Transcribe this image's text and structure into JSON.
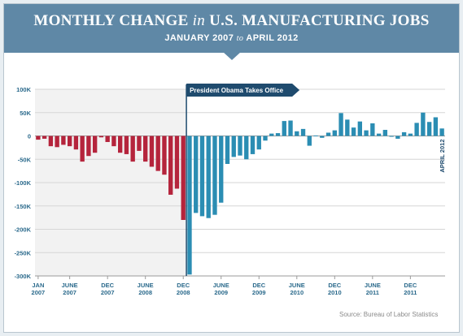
{
  "header": {
    "title_part1": "MONTHLY CHANGE",
    "title_in": "in",
    "title_part2": "U.S. MANUFACTURING JOBS",
    "subtitle_start": "JANUARY 2007",
    "subtitle_to": "to",
    "subtitle_end": "APRIL 2012"
  },
  "annotation": "President Obama Takes Office",
  "end_label": "APRIL 2012",
  "source": "Source: Bureau of Labor Statistics",
  "colors": {
    "before": "#b5243c",
    "after": "#2b8db3",
    "header": "#5f88a6",
    "flag": "#1f4b6e"
  },
  "chart_data": {
    "type": "bar",
    "ylim": [
      -300000,
      100000
    ],
    "yticks": [
      {
        "value": 100000,
        "label": "100K"
      },
      {
        "value": 50000,
        "label": "50K"
      },
      {
        "value": 0,
        "label": "0"
      },
      {
        "value": -50000,
        "label": "-50K"
      },
      {
        "value": -100000,
        "label": "-100K"
      },
      {
        "value": -150000,
        "label": "-150K"
      },
      {
        "value": -200000,
        "label": "-200K"
      },
      {
        "value": -250000,
        "label": "-250K"
      },
      {
        "value": -300000,
        "label": "-300K"
      }
    ],
    "xticks": [
      {
        "index": 0,
        "line1": "JAN",
        "line2": "2007"
      },
      {
        "index": 5,
        "line1": "JUNE",
        "line2": "2007"
      },
      {
        "index": 11,
        "line1": "DEC",
        "line2": "2007"
      },
      {
        "index": 17,
        "line1": "JUNE",
        "line2": "2008"
      },
      {
        "index": 23,
        "line1": "DEC",
        "line2": "2008"
      },
      {
        "index": 29,
        "line1": "JUNE",
        "line2": "2009"
      },
      {
        "index": 35,
        "line1": "DEC",
        "line2": "2009"
      },
      {
        "index": 41,
        "line1": "JUNE",
        "line2": "2010"
      },
      {
        "index": 47,
        "line1": "DEC",
        "line2": "2010"
      },
      {
        "index": 53,
        "line1": "JUNE",
        "line2": "2011"
      },
      {
        "index": 59,
        "line1": "DEC",
        "line2": "2011"
      }
    ],
    "split_index": 24,
    "values": [
      -8000,
      -6000,
      -22000,
      -24000,
      -19000,
      -22000,
      -29000,
      -55000,
      -43000,
      -36000,
      -3000,
      -13000,
      -22000,
      -36000,
      -39000,
      -55000,
      -32000,
      -55000,
      -66000,
      -75000,
      -83000,
      -126000,
      -113000,
      -180000,
      -297000,
      -165000,
      -172000,
      -176000,
      -169000,
      -143000,
      -60000,
      -45000,
      -42000,
      -50000,
      -39000,
      -29000,
      -10000,
      5000,
      6000,
      32000,
      33000,
      10000,
      15000,
      -21000,
      1000,
      -4000,
      7000,
      12000,
      49000,
      35000,
      18000,
      31000,
      12000,
      27000,
      5000,
      13000,
      -1000,
      -6000,
      8000,
      5000,
      28000,
      50000,
      30000,
      40000,
      16000
    ]
  }
}
